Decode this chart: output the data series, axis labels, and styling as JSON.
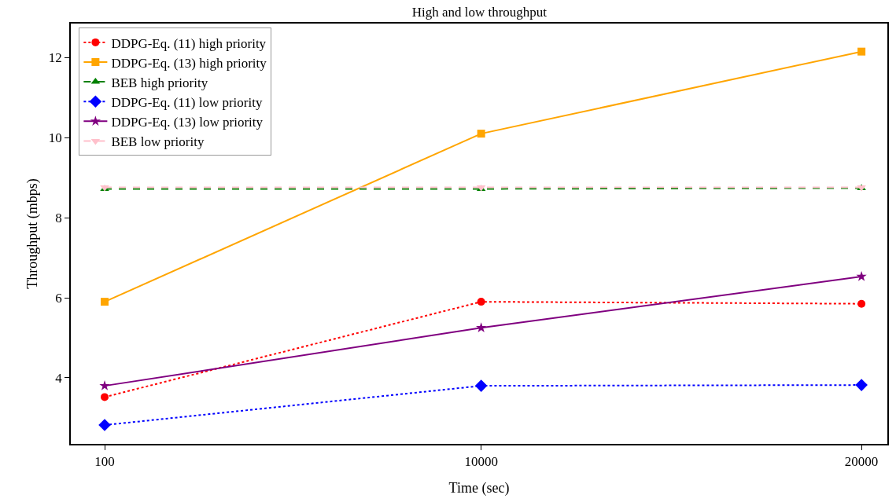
{
  "chart_data": {
    "type": "line",
    "title": "High and low throughput",
    "xlabel": "Time (sec)",
    "ylabel": "Throughput (mbps)",
    "x": [
      100,
      10000,
      20000
    ],
    "xlim": [
      -790,
      20680
    ],
    "xticks": [
      100,
      10000,
      20000
    ],
    "ylim": [
      2.35,
      12.85
    ],
    "yticks": [
      4,
      6,
      8,
      10,
      12
    ],
    "grid": false,
    "legend": "top left",
    "series": [
      {
        "name": "DDPG-Eq. (11) high priority",
        "color": "#ff0000",
        "values": [
          3.52,
          5.9,
          5.85
        ],
        "marker": "circle",
        "line_style": "dotted"
      },
      {
        "name": "DDPG-Eq. (13) high priority",
        "color": "#ffa500",
        "values": [
          5.9,
          10.1,
          12.15
        ],
        "marker": "square",
        "line_style": "solid"
      },
      {
        "name": "BEB high priority",
        "color": "#008000",
        "values": [
          8.72,
          8.72,
          8.74
        ],
        "marker": "triangle",
        "line_style": "dashed"
      },
      {
        "name": "DDPG-Eq. (11) low priority",
        "color": "#0000ff",
        "values": [
          2.82,
          3.8,
          3.82
        ],
        "marker": "diamond",
        "line_style": "dotted"
      },
      {
        "name": "DDPG-Eq. (13) low priority",
        "color": "#800080",
        "values": [
          3.8,
          5.25,
          6.53
        ],
        "marker": "star",
        "line_style": "solid"
      },
      {
        "name": "BEB low priority",
        "color": "#ffc0cb",
        "values": [
          8.76,
          8.76,
          8.76
        ],
        "marker": "triangle-down",
        "line_style": "dashed"
      }
    ]
  }
}
